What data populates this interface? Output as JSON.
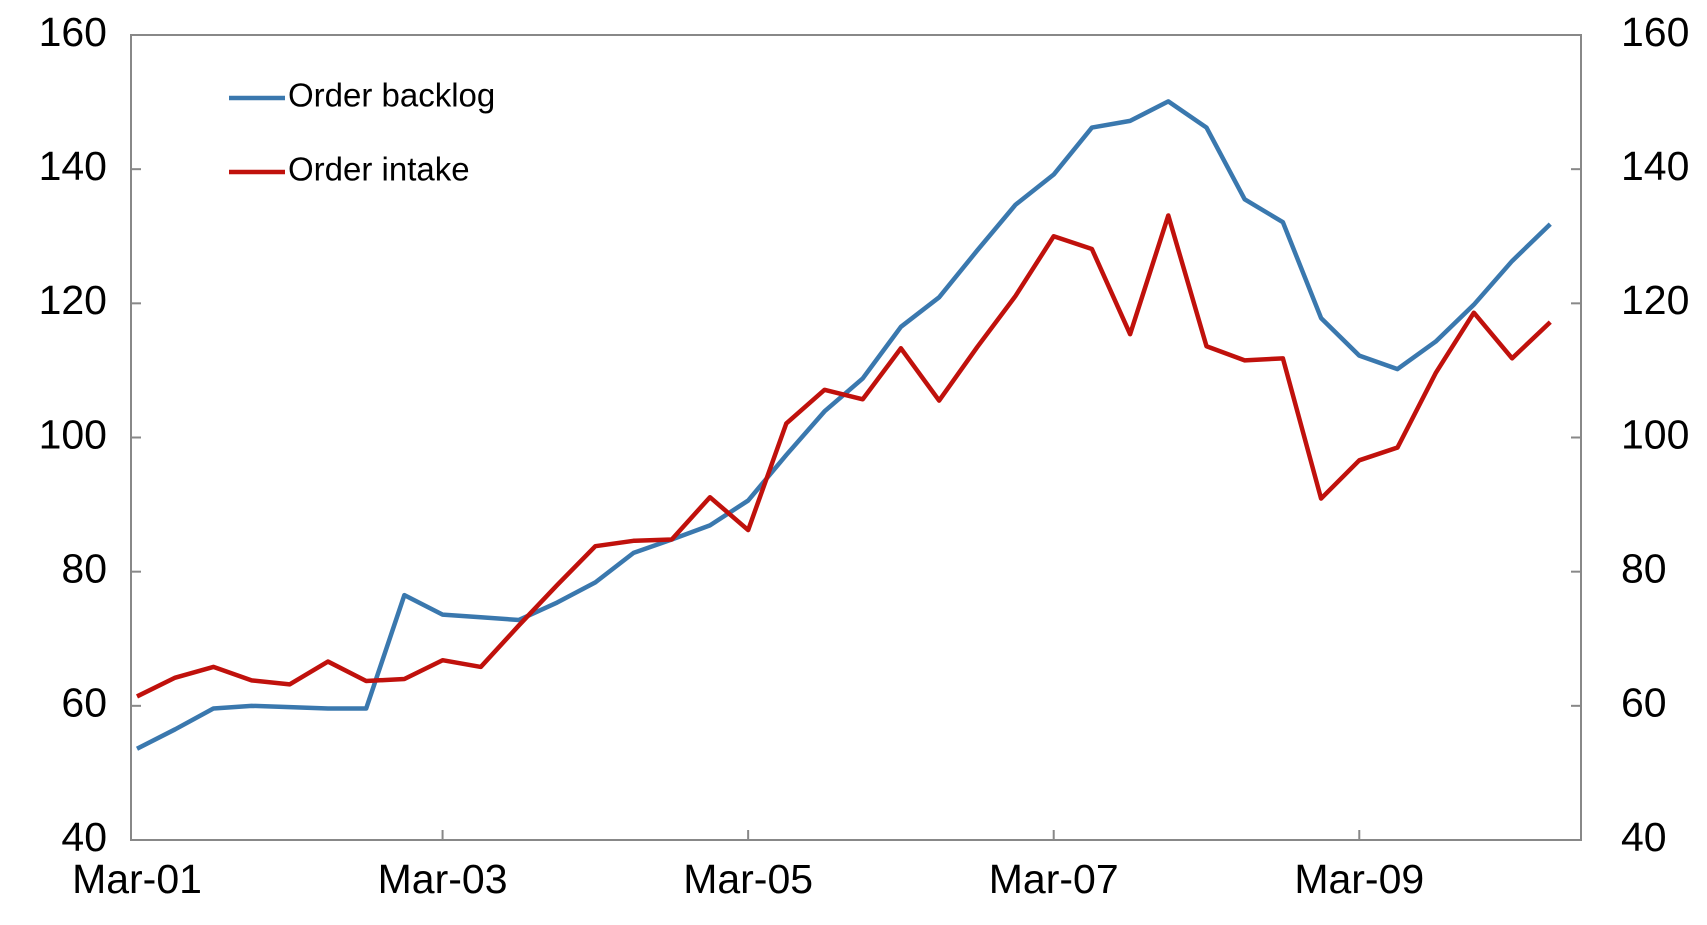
{
  "chart_data": {
    "type": "line",
    "categories": [
      "Mar-01",
      null,
      null,
      null,
      null,
      null,
      null,
      null,
      "Mar-03",
      null,
      null,
      null,
      null,
      null,
      null,
      null,
      "Mar-05",
      null,
      null,
      null,
      null,
      null,
      null,
      null,
      "Mar-07",
      null,
      null,
      null,
      null,
      null,
      null,
      null,
      "Mar-09",
      null,
      null,
      null,
      null,
      null
    ],
    "series": [
      {
        "name": "Order backlog",
        "color": "#3a78ae",
        "values": [
          53.6,
          56.5,
          59.6,
          60.0,
          59.8,
          59.6,
          59.6,
          76.5,
          73.6,
          73.2,
          72.8,
          75.4,
          78.4,
          82.8,
          84.8,
          86.9,
          90.6,
          97.4,
          103.9,
          108.8,
          116.5,
          120.9,
          127.9,
          134.7,
          139.2,
          146.2,
          147.2,
          150.1,
          146.2,
          135.5,
          132.1,
          117.8,
          112.2,
          110.2,
          114.3,
          119.8,
          126.3,
          131.8
        ]
      },
      {
        "name": "Order intake",
        "color": "#c0110c",
        "values": [
          61.4,
          64.2,
          65.8,
          63.8,
          63.2,
          66.6,
          63.7,
          64.0,
          66.8,
          65.8,
          72.0,
          78.0,
          83.8,
          84.6,
          84.8,
          91.1,
          86.2,
          102.1,
          107.1,
          105.7,
          113.3,
          105.5,
          113.5,
          121.1,
          130.0,
          128.1,
          115.4,
          133.1,
          113.6,
          111.5,
          111.8,
          90.9,
          96.6,
          98.5,
          109.6,
          118.6,
          111.8,
          117.2
        ]
      }
    ],
    "ylim": [
      40,
      160
    ],
    "yticks": [
      40,
      60,
      80,
      100,
      120,
      140,
      160
    ],
    "y2lim": [
      40,
      160
    ],
    "y2ticks": [
      40,
      60,
      80,
      100,
      120,
      140,
      160
    ],
    "legend": "upper-left"
  }
}
